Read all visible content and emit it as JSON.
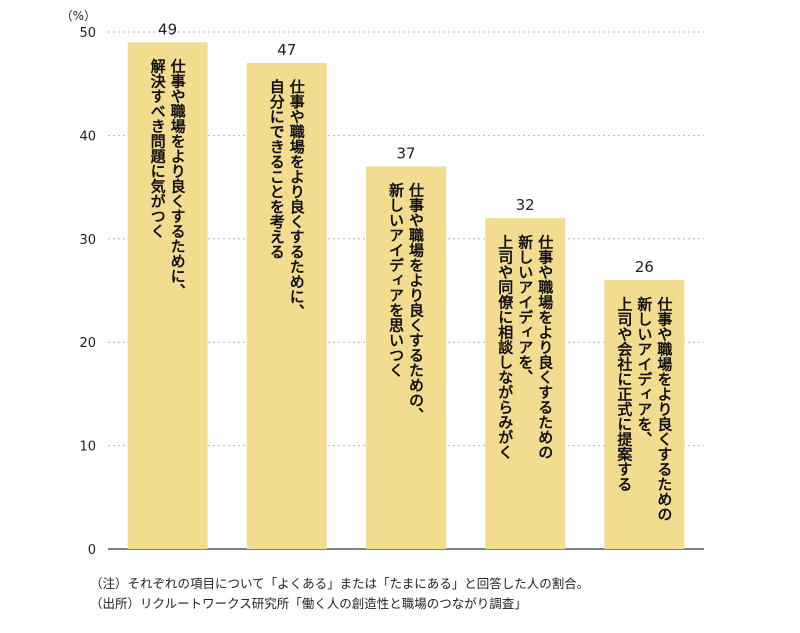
{
  "chart_data": {
    "type": "bar",
    "unit_label": "（%）",
    "ylim": [
      0,
      50
    ],
    "yticks": [
      0,
      10,
      20,
      30,
      40,
      50
    ],
    "grid": true,
    "bar_color": "#f1dc90",
    "categories": [
      [
        "仕事や職場をより良くするために、",
        "解決すべき問題に気がつく"
      ],
      [
        "仕事や職場をより良くするために、",
        "自分にできることを考える"
      ],
      [
        "仕事や職場をより良くするための、",
        "新しいアイディアを思いつく"
      ],
      [
        "仕事や職場をより良くするための",
        "新しいアイディアを、",
        "上司や同僚に相談しながらみがく"
      ],
      [
        "仕事や職場をより良くするための",
        "新しいアイディアを、",
        "上司や会社に正式に提案する"
      ]
    ],
    "values": [
      49,
      47,
      37,
      32,
      26
    ]
  },
  "notes": {
    "note": "（注）それぞれの項目について「よくある」または「たまにある」と回答した人の割合。",
    "source": "（出所）リクルートワークス研究所「働く人の創造性と職場のつながり調査」"
  }
}
